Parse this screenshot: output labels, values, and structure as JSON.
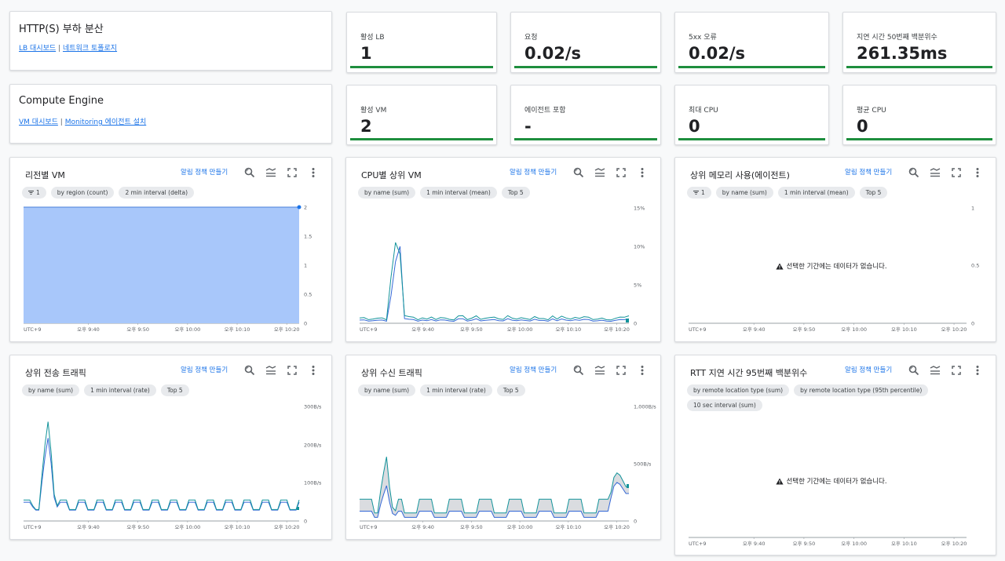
{
  "lb_card": {
    "title": "HTTP(S) 부하 분산",
    "link1": "LB 대시보드",
    "sep": "|",
    "link2": "네트워크 토폴로지"
  },
  "ce_card": {
    "title": "Compute Engine",
    "link1": "VM 대시보드",
    "sep": "|",
    "link2": "Monitoring 에이전트 설치"
  },
  "stats": [
    {
      "label": "활성 LB",
      "value": "1"
    },
    {
      "label": "요청",
      "value": "0.02/s"
    },
    {
      "label": "5xx 오류",
      "value": "0.02/s"
    },
    {
      "label": "지연 시간 50번째 백분위수",
      "value": "261.35ms"
    },
    {
      "label": "활성 VM",
      "value": "2"
    },
    {
      "label": "에이전트 포함",
      "value": "-"
    },
    {
      "label": "최대 CPU",
      "value": "0"
    },
    {
      "label": "평균 CPU",
      "value": "0"
    }
  ],
  "alert_label": "알림 정책 만들기",
  "no_data_text": "선택한 기간에는 데이터가 없습니다.",
  "colors": {
    "accent": "#1a73e8",
    "status_green": "#1e8e3e",
    "series_teal": "#12939a",
    "series_blue": "#3367d6",
    "area_fill": "#a8c7fa"
  },
  "charts": [
    {
      "title": "리전별 VM",
      "chips": [
        "1",
        "by region (count)",
        "2 min interval (delta)"
      ],
      "filter_chip": true,
      "y_ticks": [
        "2",
        "1.5",
        "1",
        "0.5",
        "0"
      ],
      "x_ticks": [
        "UTC+9",
        "오후 9:40",
        "오후 9:50",
        "오후 10:00",
        "오후 10:10",
        "오후 10:20"
      ],
      "no_data": false
    },
    {
      "title": "CPU별 상위 VM",
      "chips": [
        "by name (sum)",
        "1 min interval (mean)",
        "Top 5"
      ],
      "filter_chip": false,
      "y_ticks": [
        "15%",
        "10%",
        "5%",
        "0"
      ],
      "x_ticks": [
        "UTC+9",
        "오후 9:40",
        "오후 9:50",
        "오후 10:00",
        "오후 10:10",
        "오후 10:20"
      ],
      "no_data": false
    },
    {
      "title": "상위 메모리 사용(에이전트)",
      "chips": [
        "1",
        "by name (sum)",
        "1 min interval (mean)",
        "Top 5"
      ],
      "filter_chip": true,
      "y_ticks": [
        "1",
        "0.5",
        "0"
      ],
      "x_ticks": [
        "UTC+9",
        "오후 9:40",
        "오후 9:50",
        "오후 10:00",
        "오후 10:10",
        "오후 10:20"
      ],
      "no_data": true
    },
    {
      "title": "상위 전송 트래픽",
      "chips": [
        "by name (sum)",
        "1 min interval (rate)",
        "Top 5"
      ],
      "filter_chip": false,
      "y_ticks": [
        "300B/s",
        "200B/s",
        "100B/s",
        "0"
      ],
      "x_ticks": [
        "UTC+9",
        "오후 9:40",
        "오후 9:50",
        "오후 10:00",
        "오후 10:10",
        "오후 10:20"
      ],
      "no_data": false
    },
    {
      "title": "상위 수신 트래픽",
      "chips": [
        "by name (sum)",
        "1 min interval (rate)",
        "Top 5"
      ],
      "filter_chip": false,
      "y_ticks": [
        "1,000B/s",
        "500B/s",
        "0"
      ],
      "x_ticks": [
        "UTC+9",
        "오후 9:40",
        "오후 9:50",
        "오후 10:00",
        "오후 10:10",
        "오후 10:20"
      ],
      "no_data": false
    },
    {
      "title": "RTT 지연 시간 95번째 백분위수",
      "chips": [
        "by remote location type (sum)",
        "by remote location type (95th percentile)",
        "10 sec interval (sum)"
      ],
      "filter_chip": false,
      "y_ticks": [],
      "x_ticks": [
        "UTC+9",
        "오후 9:40",
        "오후 9:50",
        "오후 10:00",
        "오후 10:10",
        "오후 10:20"
      ],
      "no_data": true
    }
  ]
}
